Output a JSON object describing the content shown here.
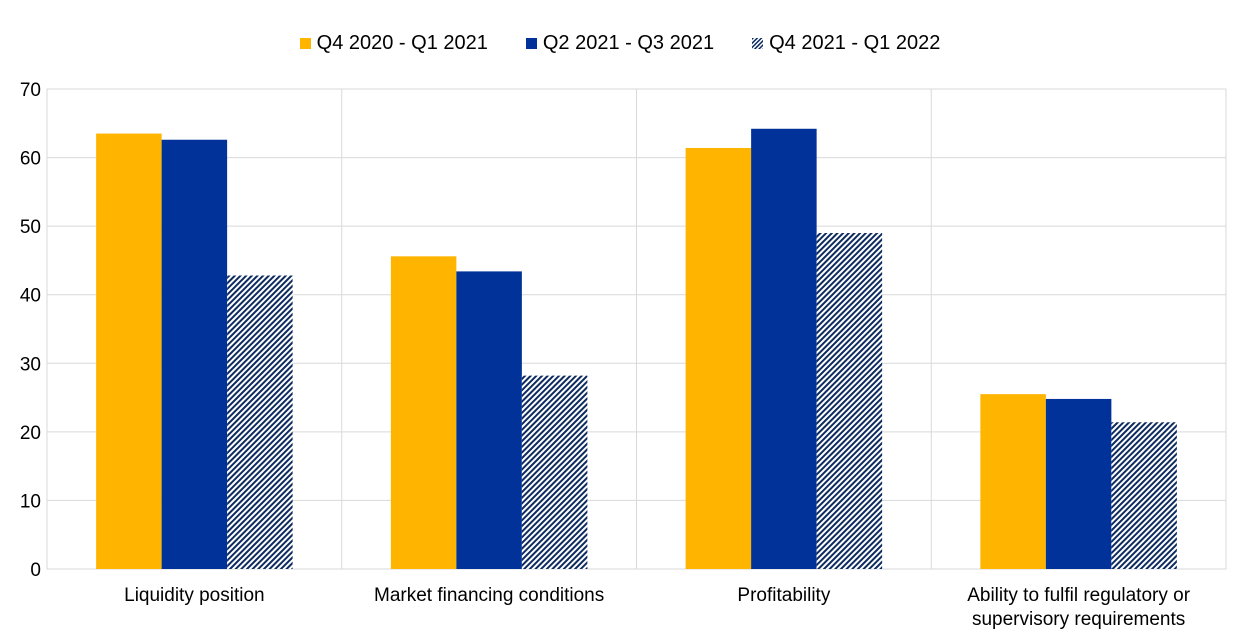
{
  "chart_data": {
    "type": "bar",
    "categories": [
      [
        "Liquidity position"
      ],
      [
        "Market financing conditions"
      ],
      [
        "Profitability"
      ],
      [
        "Ability to fulfil regulatory or",
        "supervisory requirements"
      ]
    ],
    "series": [
      {
        "name": "Q4 2020 - Q1 2021",
        "values": [
          63.5,
          45.6,
          61.4,
          25.5
        ],
        "color": "#FFB400",
        "pattern": "solid"
      },
      {
        "name": "Q2 2021 - Q3 2021",
        "values": [
          62.6,
          43.4,
          64.2,
          24.8
        ],
        "color": "#003299",
        "pattern": "solid"
      },
      {
        "name": "Q4 2021 - Q1 2022",
        "values": [
          42.8,
          28.2,
          49.0,
          21.4
        ],
        "color": "#0D2B5E",
        "pattern": "hatched"
      }
    ],
    "yticks": [
      "0",
      "10",
      "20",
      "30",
      "40",
      "50",
      "60",
      "70"
    ],
    "ylim": [
      0,
      70
    ],
    "grid": true,
    "legend_position": "top-center"
  }
}
